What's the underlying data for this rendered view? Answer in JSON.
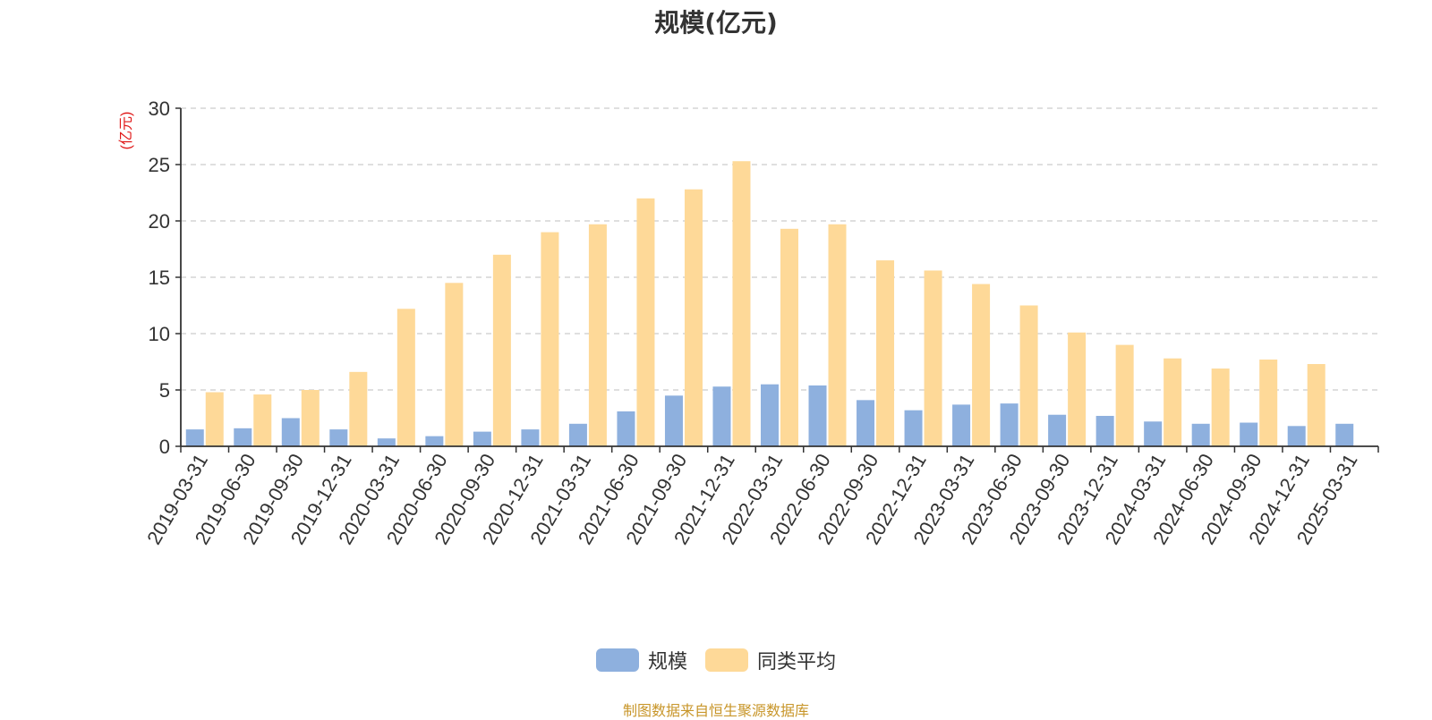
{
  "chart_data": {
    "type": "bar",
    "title": "规模(亿元)",
    "ylabel": "(亿元)",
    "ylim": [
      0,
      30
    ],
    "yticks": [
      0,
      5,
      10,
      15,
      20,
      25,
      30
    ],
    "grid": true,
    "legend_position": "bottom",
    "categories": [
      "2019-03-31",
      "2019-06-30",
      "2019-09-30",
      "2019-12-31",
      "2020-03-31",
      "2020-06-30",
      "2020-09-30",
      "2020-12-31",
      "2021-03-31",
      "2021-06-30",
      "2021-09-30",
      "2021-12-31",
      "2022-03-31",
      "2022-06-30",
      "2022-09-30",
      "2022-12-31",
      "2023-03-31",
      "2023-06-30",
      "2023-09-30",
      "2023-12-31",
      "2024-03-31",
      "2024-06-30",
      "2024-09-30",
      "2024-12-31",
      "2025-03-31"
    ],
    "series": [
      {
        "name": "规模",
        "color": "#8eb0de",
        "values": [
          1.5,
          1.6,
          2.5,
          1.5,
          0.7,
          0.9,
          1.3,
          1.5,
          2.0,
          3.1,
          4.5,
          5.3,
          5.5,
          5.4,
          4.1,
          3.2,
          3.7,
          3.8,
          2.8,
          2.7,
          2.2,
          2.0,
          2.1,
          1.8,
          2.0
        ]
      },
      {
        "name": "同类平均",
        "color": "#fed998",
        "values": [
          4.8,
          4.6,
          5.0,
          6.6,
          12.2,
          14.5,
          17.0,
          19.0,
          19.7,
          22.0,
          22.8,
          25.3,
          19.3,
          19.7,
          16.5,
          15.6,
          14.4,
          12.5,
          10.1,
          9.0,
          7.8,
          6.9,
          7.7,
          7.3,
          null
        ]
      }
    ]
  },
  "legend": {
    "items": [
      "规模",
      "同类平均"
    ]
  },
  "footer": {
    "source_text": "制图数据来自恒生聚源数据库",
    "color": "#c8962a"
  },
  "colors": {
    "axis": "#333333",
    "grid": "#cccccc",
    "ylabel": "#e01818"
  }
}
